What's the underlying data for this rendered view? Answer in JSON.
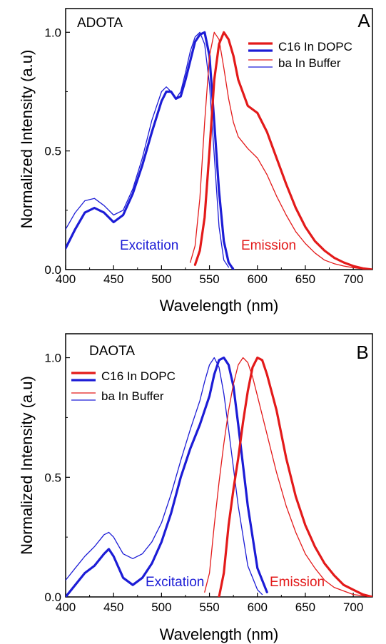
{
  "colors": {
    "excitation": "#1c1cd6",
    "emission": "#e31a1a",
    "axis": "#000000"
  },
  "chart_data": [
    {
      "type": "line",
      "panel_letter": "A",
      "dye_label": "ADOTA",
      "xlabel": "Wavelength (nm)",
      "ylabel": "Normalized Intensity (a.u)",
      "xlim": [
        400,
        720
      ],
      "ylim": [
        0,
        1.1
      ],
      "xticks": [
        "400",
        "450",
        "500",
        "550",
        "600",
        "650",
        "700"
      ],
      "yticks": [
        "0.0",
        "0.5",
        "1.0"
      ],
      "legend_position": "top-right",
      "legend": [
        "C16 In DOPC",
        "ba In Buffer"
      ],
      "annotations": {
        "excitation": "Excitation",
        "emission": "Emission"
      },
      "series": [
        {
          "name": "C16 In DOPC",
          "group": "excitation",
          "style": "thick",
          "x": [
            400,
            410,
            420,
            430,
            440,
            450,
            460,
            470,
            480,
            490,
            500,
            505,
            510,
            515,
            520,
            525,
            530,
            535,
            540,
            545,
            550,
            555,
            560,
            565,
            570,
            575
          ],
          "y": [
            0.09,
            0.17,
            0.24,
            0.26,
            0.24,
            0.2,
            0.23,
            0.32,
            0.44,
            0.58,
            0.71,
            0.75,
            0.75,
            0.72,
            0.73,
            0.8,
            0.88,
            0.96,
            0.99,
            1.0,
            0.9,
            0.62,
            0.33,
            0.12,
            0.03,
            0.0
          ]
        },
        {
          "name": "ba In Buffer",
          "group": "excitation",
          "style": "thin",
          "x": [
            400,
            410,
            420,
            430,
            440,
            450,
            460,
            470,
            480,
            490,
            500,
            505,
            510,
            515,
            520,
            525,
            530,
            535,
            540,
            545,
            550,
            555,
            560,
            565,
            570
          ],
          "y": [
            0.17,
            0.24,
            0.29,
            0.3,
            0.27,
            0.23,
            0.25,
            0.34,
            0.47,
            0.63,
            0.75,
            0.77,
            0.75,
            0.72,
            0.75,
            0.83,
            0.92,
            0.98,
            1.0,
            0.95,
            0.78,
            0.48,
            0.18,
            0.04,
            0.01
          ]
        },
        {
          "name": "C16 In DOPC",
          "group": "emission",
          "style": "thick",
          "x": [
            535,
            540,
            545,
            550,
            555,
            560,
            565,
            570,
            575,
            580,
            590,
            600,
            610,
            620,
            630,
            640,
            650,
            660,
            670,
            680,
            690,
            700,
            710,
            720
          ],
          "y": [
            0.02,
            0.08,
            0.22,
            0.5,
            0.8,
            0.95,
            1.0,
            0.97,
            0.9,
            0.8,
            0.69,
            0.66,
            0.58,
            0.47,
            0.36,
            0.26,
            0.18,
            0.12,
            0.08,
            0.05,
            0.03,
            0.015,
            0.005,
            0.0
          ]
        },
        {
          "name": "ba In Buffer",
          "group": "emission",
          "style": "thin",
          "x": [
            530,
            535,
            540,
            545,
            550,
            555,
            560,
            565,
            570,
            575,
            580,
            590,
            600,
            610,
            620,
            630,
            640,
            650,
            660,
            670,
            680,
            690,
            700,
            710,
            720
          ],
          "y": [
            0.03,
            0.1,
            0.3,
            0.62,
            0.9,
            1.0,
            0.97,
            0.85,
            0.72,
            0.62,
            0.56,
            0.51,
            0.47,
            0.4,
            0.31,
            0.23,
            0.16,
            0.11,
            0.07,
            0.04,
            0.025,
            0.015,
            0.008,
            0.003,
            0.0
          ]
        }
      ]
    },
    {
      "type": "line",
      "panel_letter": "B",
      "dye_label": "DAOTA",
      "xlabel": "Wavelength (nm)",
      "ylabel": "Normalized Intensity (a.u)",
      "xlim": [
        400,
        720
      ],
      "ylim": [
        0,
        1.1
      ],
      "xticks": [
        "400",
        "450",
        "500",
        "550",
        "600",
        "650",
        "700"
      ],
      "yticks": [
        "0.0",
        "0.5",
        "1.0"
      ],
      "legend_position": "top-left",
      "legend": [
        "C16 In DOPC",
        "ba In Buffer"
      ],
      "annotations": {
        "excitation": "Excitation",
        "emission": "Emission"
      },
      "series": [
        {
          "name": "C16 In DOPC",
          "group": "excitation",
          "style": "thick",
          "x": [
            400,
            410,
            420,
            430,
            440,
            445,
            450,
            460,
            470,
            480,
            490,
            500,
            510,
            520,
            530,
            540,
            550,
            555,
            560,
            565,
            570,
            575,
            580,
            590,
            600,
            610
          ],
          "y": [
            0.0,
            0.05,
            0.1,
            0.13,
            0.18,
            0.2,
            0.17,
            0.08,
            0.05,
            0.08,
            0.14,
            0.23,
            0.35,
            0.5,
            0.62,
            0.72,
            0.84,
            0.93,
            0.99,
            1.0,
            0.97,
            0.88,
            0.72,
            0.38,
            0.12,
            0.02
          ]
        },
        {
          "name": "ba In Buffer",
          "group": "excitation",
          "style": "thin",
          "x": [
            400,
            410,
            420,
            430,
            440,
            445,
            450,
            460,
            470,
            480,
            490,
            500,
            510,
            520,
            530,
            540,
            545,
            550,
            555,
            560,
            565,
            570,
            580,
            590,
            600,
            605
          ],
          "y": [
            0.07,
            0.12,
            0.17,
            0.21,
            0.26,
            0.27,
            0.25,
            0.18,
            0.16,
            0.18,
            0.23,
            0.31,
            0.43,
            0.57,
            0.7,
            0.82,
            0.9,
            0.97,
            1.0,
            0.96,
            0.85,
            0.7,
            0.38,
            0.13,
            0.03,
            0.01
          ]
        },
        {
          "name": "C16 In DOPC",
          "group": "emission",
          "style": "thick",
          "x": [
            560,
            565,
            570,
            575,
            580,
            585,
            590,
            595,
            600,
            605,
            610,
            620,
            630,
            640,
            650,
            660,
            670,
            680,
            690,
            700,
            710,
            720
          ],
          "y": [
            0.0,
            0.1,
            0.3,
            0.45,
            0.58,
            0.73,
            0.86,
            0.96,
            1.0,
            0.99,
            0.93,
            0.78,
            0.58,
            0.42,
            0.3,
            0.21,
            0.14,
            0.09,
            0.05,
            0.03,
            0.01,
            0.0
          ]
        },
        {
          "name": "ba In Buffer",
          "group": "emission",
          "style": "thin",
          "x": [
            545,
            550,
            555,
            560,
            565,
            570,
            575,
            580,
            585,
            590,
            595,
            600,
            610,
            620,
            630,
            640,
            650,
            660,
            670,
            680,
            690,
            700,
            710,
            720
          ],
          "y": [
            0.02,
            0.1,
            0.3,
            0.48,
            0.64,
            0.78,
            0.89,
            0.97,
            1.0,
            0.98,
            0.92,
            0.84,
            0.68,
            0.52,
            0.38,
            0.27,
            0.18,
            0.12,
            0.07,
            0.04,
            0.025,
            0.01,
            0.005,
            0.0
          ]
        }
      ]
    }
  ]
}
